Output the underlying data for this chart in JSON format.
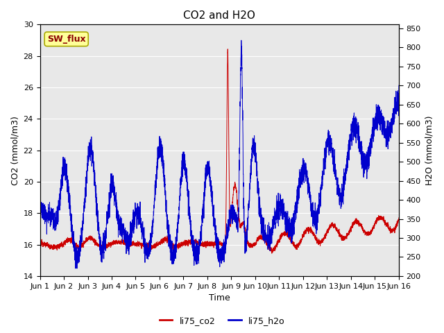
{
  "title": "CO2 and H2O",
  "xlabel": "Time",
  "ylabel_left": "CO2 (mmol/m3)",
  "ylabel_right": "H2O (mmol/m3)",
  "ylim_left": [
    14,
    30
  ],
  "ylim_right": [
    200,
    860
  ],
  "yticks_left": [
    14,
    16,
    18,
    20,
    22,
    24,
    26,
    28,
    30
  ],
  "yticks_right": [
    200,
    250,
    300,
    350,
    400,
    450,
    500,
    550,
    600,
    650,
    700,
    750,
    800,
    850
  ],
  "xtick_labels": [
    "Jun 1",
    "Jun 2",
    "Jun 3",
    "Jun 4",
    "Jun 5",
    "Jun 6",
    "Jun 7",
    "Jun 8",
    "Jun 9",
    "Jun 10",
    "Jun 11",
    "Jun 12",
    "Jun 13",
    "Jun 14",
    "Jun 15",
    "Jun 16"
  ],
  "color_co2": "#cc0000",
  "color_h2o": "#0000cc",
  "label_co2": "li75_co2",
  "label_h2o": "li75_h2o",
  "sw_flux_label": "SW_flux",
  "sw_flux_bg": "#ffff99",
  "sw_flux_fg": "#8b0000",
  "background_color": "#e8e8e8",
  "grid_color": "#ffffff",
  "title_fontsize": 11,
  "axis_fontsize": 9,
  "tick_fontsize": 8
}
